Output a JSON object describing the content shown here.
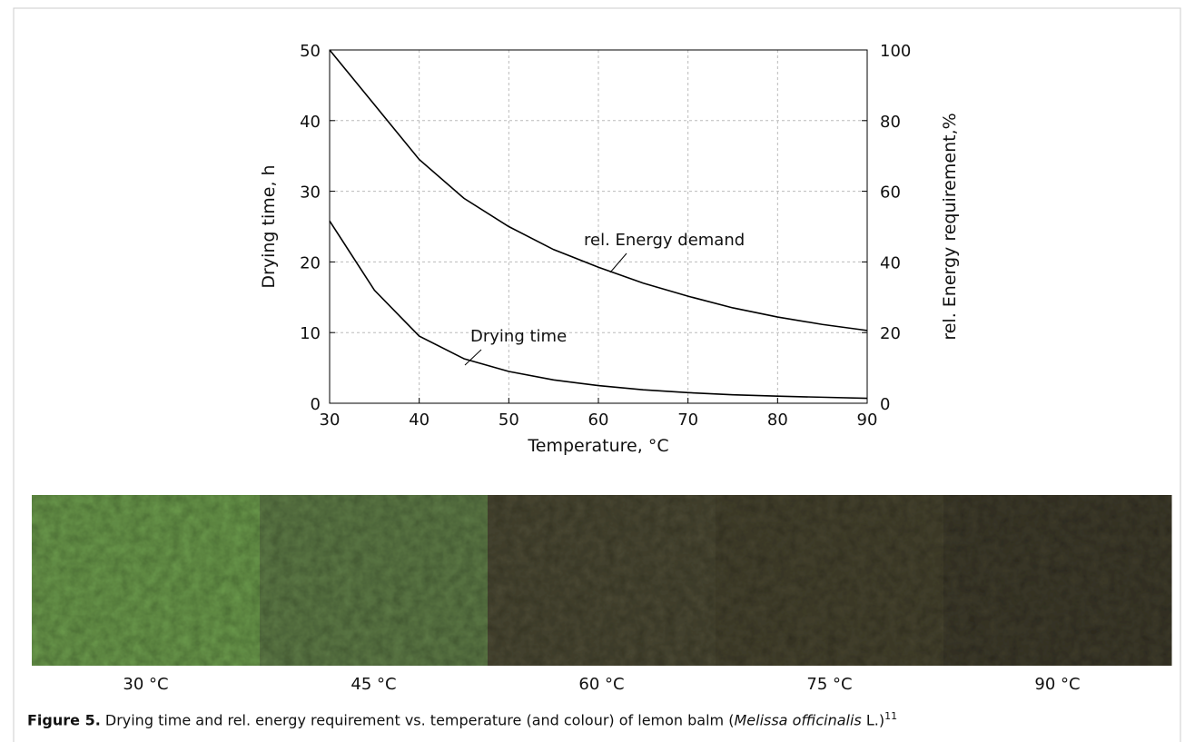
{
  "chart_data": {
    "type": "line",
    "xlabel": "Temperature, °C",
    "ylabel": "Drying time, h",
    "y2label": "rel. Energy requirement,%",
    "x": [
      30,
      35,
      40,
      45,
      50,
      55,
      60,
      65,
      70,
      75,
      80,
      85,
      90
    ],
    "series": [
      {
        "name": "Drying time",
        "color": "#000000",
        "values": [
          25.8,
          16,
          9.5,
          6.3,
          4.5,
          3.3,
          2.5,
          1.9,
          1.5,
          1.2,
          1.0,
          0.85,
          0.7
        ]
      },
      {
        "name": "rel. Energy demand",
        "color": "#000000",
        "axis": "y2",
        "values": [
          100,
          84.5,
          69,
          58,
          50,
          43.5,
          38.5,
          34,
          30.3,
          27,
          24.4,
          22.3,
          20.6
        ]
      }
    ],
    "xlim": [
      30,
      90
    ],
    "xticks": [
      30,
      40,
      50,
      60,
      70,
      80,
      90
    ],
    "ylim": [
      0,
      50
    ],
    "yticks": [
      0,
      10,
      20,
      30,
      40,
      50
    ],
    "y2lim": [
      0,
      100
    ],
    "y2ticks": [
      0,
      20,
      40,
      60,
      80,
      100
    ],
    "grid": true
  },
  "photos": {
    "labels": [
      "30 °C",
      "45 °C",
      "60 °C",
      "75 °C",
      "90 °C"
    ],
    "colors": [
      "#6b9a4c",
      "#5e7b47",
      "#4b4934",
      "#46432f",
      "#3e3b2b"
    ]
  },
  "caption": {
    "label": "Figure 5.",
    "text": " Drying time and rel. energy requirement vs. temperature (and colour) of lemon balm (",
    "species": "Melissa officinalis",
    "tail": " L.)",
    "ref": "11"
  }
}
